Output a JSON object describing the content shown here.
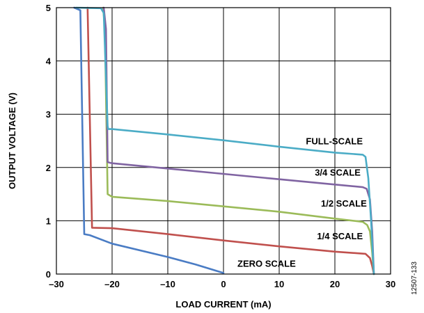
{
  "chart_data": {
    "type": "line",
    "title": "",
    "xlabel": "LOAD CURRENT (mA)",
    "ylabel": "OUTPUT VOLTAGE (V)",
    "xlim": [
      -30,
      30
    ],
    "ylim": [
      0,
      5
    ],
    "xticks": [
      "–30",
      "–20",
      "–10",
      "0",
      "10",
      "20",
      "30"
    ],
    "yticks": [
      "0",
      "1",
      "2",
      "3",
      "4",
      "5"
    ],
    "grid": true,
    "figure_id": "12507-133",
    "series": [
      {
        "name": "ZERO SCALE",
        "color": "#4a7cc4",
        "points": [
          [
            -26.8,
            5.0
          ],
          [
            -25.7,
            4.95
          ],
          [
            -25.0,
            0.75
          ],
          [
            -24.0,
            0.73
          ],
          [
            -20.0,
            0.57
          ],
          [
            -10.0,
            0.32
          ],
          [
            -5.0,
            0.18
          ],
          [
            0.0,
            0.02
          ]
        ]
      },
      {
        "name": "1/4 SCALE",
        "color": "#c0504d",
        "points": [
          [
            -24.4,
            5.0
          ],
          [
            -23.6,
            0.87
          ],
          [
            -20.0,
            0.86
          ],
          [
            -10.0,
            0.75
          ],
          [
            0.0,
            0.63
          ],
          [
            10.0,
            0.52
          ],
          [
            20.0,
            0.42
          ],
          [
            25.5,
            0.38
          ],
          [
            26.3,
            0.3
          ],
          [
            26.7,
            0.15
          ],
          [
            27.0,
            0.0
          ]
        ]
      },
      {
        "name": "1/2 SCALE",
        "color": "#9bbb59",
        "points": [
          [
            -21.6,
            5.0
          ],
          [
            -21.3,
            4.6
          ],
          [
            -20.8,
            1.5
          ],
          [
            -20.0,
            1.45
          ],
          [
            -10.0,
            1.37
          ],
          [
            0.0,
            1.27
          ],
          [
            10.0,
            1.17
          ],
          [
            20.0,
            1.04
          ],
          [
            25.0,
            0.98
          ],
          [
            25.8,
            0.92
          ],
          [
            26.3,
            0.8
          ],
          [
            26.7,
            0.4
          ],
          [
            27.0,
            0.0
          ]
        ]
      },
      {
        "name": "3/4 SCALE",
        "color": "#8064a2",
        "points": [
          [
            -21.5,
            5.0
          ],
          [
            -21.1,
            4.6
          ],
          [
            -20.8,
            2.1
          ],
          [
            -20.0,
            2.08
          ],
          [
            -10.0,
            1.98
          ],
          [
            0.0,
            1.88
          ],
          [
            10.0,
            1.78
          ],
          [
            20.0,
            1.68
          ],
          [
            25.0,
            1.63
          ],
          [
            25.7,
            1.6
          ],
          [
            26.3,
            1.4
          ],
          [
            26.7,
            0.8
          ],
          [
            27.0,
            0.0
          ]
        ]
      },
      {
        "name": "FULL-SCALE",
        "color": "#4bacc6",
        "points": [
          [
            -26.5,
            5.0
          ],
          [
            -22.0,
            4.99
          ],
          [
            -21.5,
            4.9
          ],
          [
            -20.8,
            2.78
          ],
          [
            -20.7,
            2.72
          ],
          [
            -20.0,
            2.72
          ],
          [
            -10.0,
            2.62
          ],
          [
            0.0,
            2.51
          ],
          [
            10.0,
            2.39
          ],
          [
            20.0,
            2.28
          ],
          [
            25.0,
            2.24
          ],
          [
            25.5,
            2.2
          ],
          [
            26.0,
            1.8
          ],
          [
            26.5,
            1.0
          ],
          [
            27.0,
            0.0
          ]
        ]
      }
    ],
    "annotations": [
      {
        "text": "FULL-SCALE",
        "x": 14.8,
        "y": 2.5
      },
      {
        "text": "3/4 SCALE",
        "x": 16.4,
        "y": 1.91
      },
      {
        "text": "1/2 SCALE",
        "x": 17.5,
        "y": 1.33
      },
      {
        "text": "1/4 SCALE",
        "x": 16.8,
        "y": 0.72
      },
      {
        "text": "ZERO SCALE",
        "x": 2.5,
        "y": 0.2
      }
    ]
  }
}
